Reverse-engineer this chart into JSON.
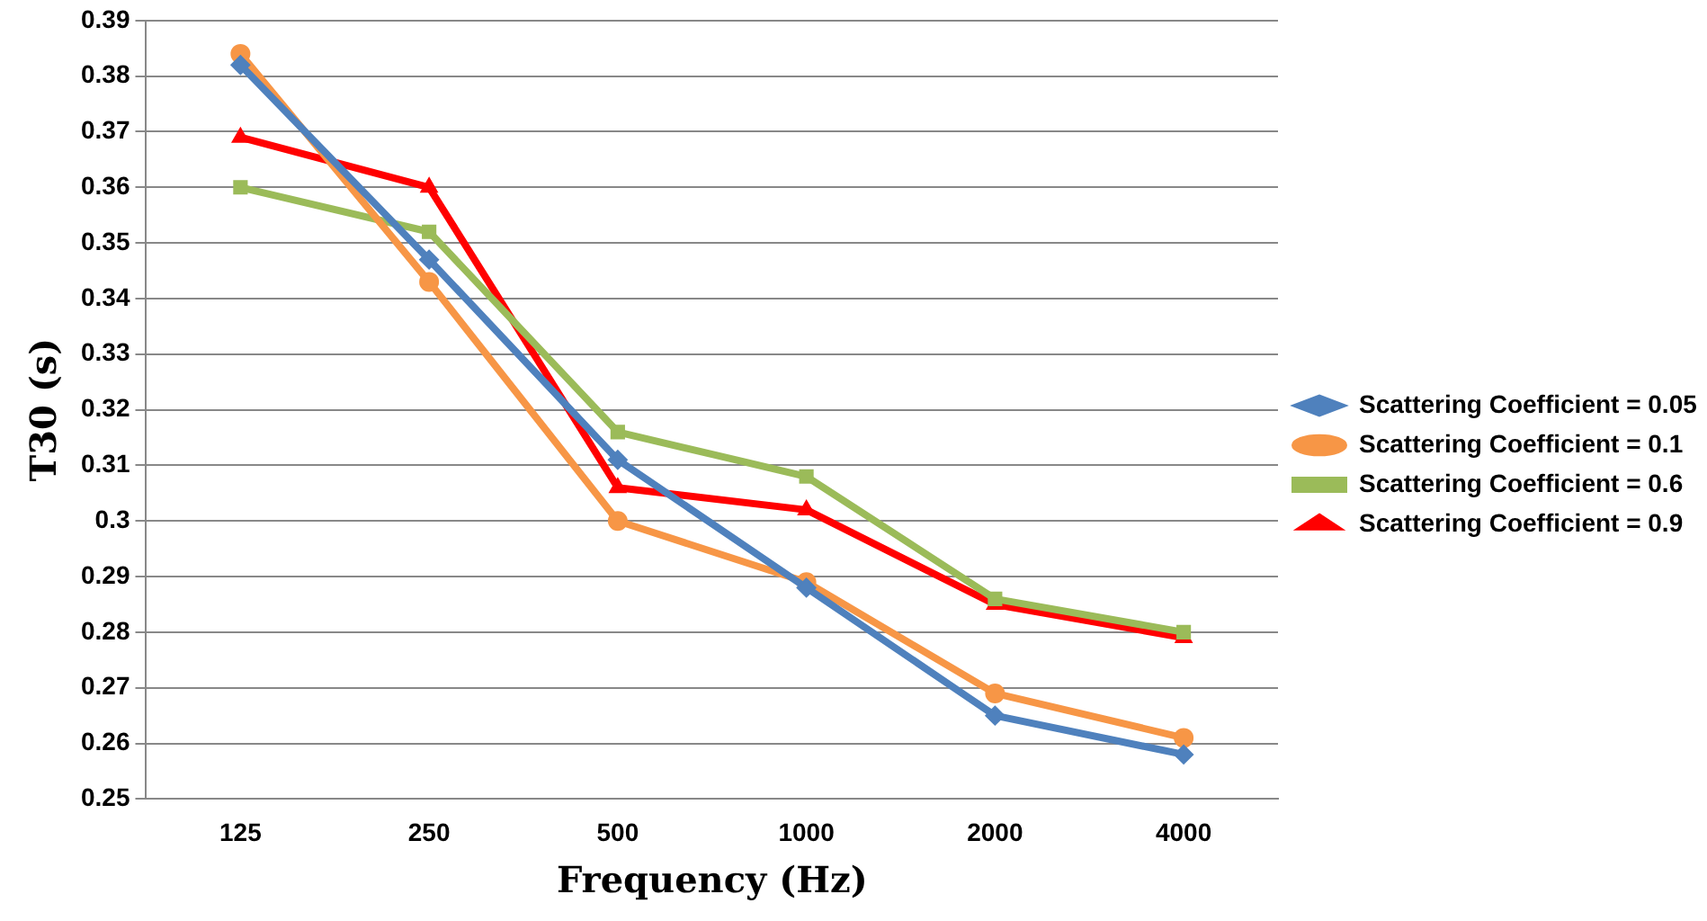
{
  "chart_data": {
    "type": "line",
    "xlabel": "Frequency (Hz)",
    "ylabel": "T30 (s)",
    "categories": [
      "125",
      "250",
      "500",
      "1000",
      "2000",
      "4000"
    ],
    "series": [
      {
        "name": "Scattering Coefficient = 0.05",
        "color": "#4f81bd",
        "marker": "diamond",
        "values": [
          0.382,
          0.347,
          0.311,
          0.288,
          0.265,
          0.258
        ]
      },
      {
        "name": "Scattering Coefficient = 0.1",
        "color": "#f79646",
        "marker": "circle",
        "values": [
          0.384,
          0.343,
          0.3,
          0.289,
          0.269,
          0.261
        ]
      },
      {
        "name": "Scattering Coefficient = 0.6",
        "color": "#9bbb59",
        "marker": "square",
        "values": [
          0.36,
          0.352,
          0.316,
          0.308,
          0.286,
          0.28
        ]
      },
      {
        "name": "Scattering Coefficient = 0.9",
        "color": "#ff0000",
        "marker": "triangle",
        "values": [
          0.369,
          0.36,
          0.306,
          0.302,
          0.285,
          0.279
        ]
      }
    ],
    "ylim": [
      0.25,
      0.39
    ],
    "yticks": [
      0.25,
      0.26,
      0.27,
      0.28,
      0.29,
      0.3,
      0.31,
      0.32,
      0.33,
      0.34,
      0.35,
      0.36,
      0.37,
      0.38,
      0.39
    ],
    "grid": "y",
    "legend": "right",
    "line_style": "solid"
  }
}
